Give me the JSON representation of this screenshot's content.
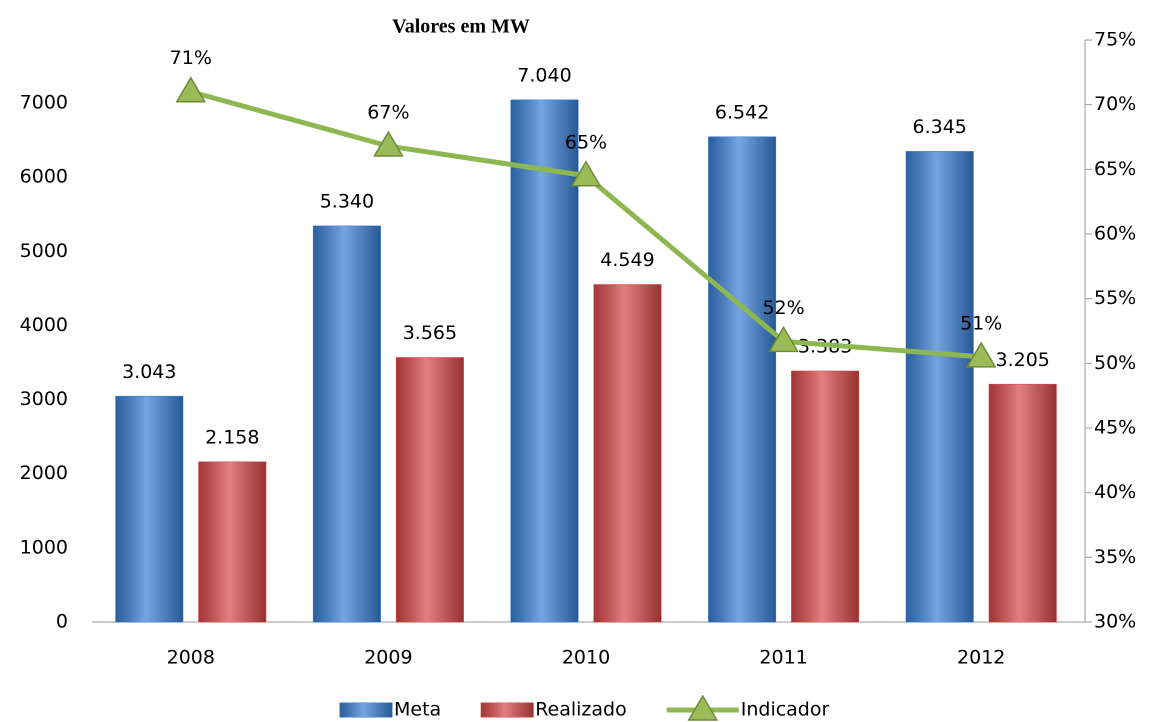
{
  "chart_data": {
    "type": "bar",
    "title": "Valores em MW",
    "categories": [
      "2008",
      "2009",
      "2010",
      "2011",
      "2012"
    ],
    "series": [
      {
        "name": "Meta",
        "color": "#3a7fd5",
        "values": [
          3043,
          5340,
          7040,
          6542,
          6345
        ],
        "value_labels": [
          "3.043",
          "5.340",
          "7.040",
          "6.542",
          "6.345"
        ]
      },
      {
        "name": "Realizado",
        "color": "#d94848",
        "values": [
          2158,
          3565,
          4549,
          3383,
          3205
        ],
        "value_labels": [
          "2.158",
          "3.565",
          "4.549",
          "3.383",
          "3.205"
        ]
      },
      {
        "name": "Indicador",
        "type": "line",
        "axis": "y2",
        "color": "#8db851",
        "values": [
          71,
          66.8,
          64.5,
          51.7,
          50.5
        ],
        "value_labels": [
          "71%",
          "67%",
          "65%",
          "52%",
          "51%"
        ]
      }
    ],
    "ylim": [
      0,
      7850
    ],
    "yticks": [
      0,
      1000,
      2000,
      3000,
      4000,
      5000,
      6000,
      7000
    ],
    "y2lim": [
      30,
      75
    ],
    "y2ticks": [
      {
        "value": 30,
        "label": "30%"
      },
      {
        "value": 35,
        "label": "35%"
      },
      {
        "value": 40,
        "label": "40%"
      },
      {
        "value": 45,
        "label": "45%"
      },
      {
        "value": 50,
        "label": "50%"
      },
      {
        "value": 55,
        "label": "55%"
      },
      {
        "value": 60,
        "label": "60%"
      },
      {
        "value": 65,
        "label": "65%"
      },
      {
        "value": 70,
        "label": "70%"
      },
      {
        "value": 75,
        "label": "75%"
      }
    ],
    "legend": "bottom"
  }
}
